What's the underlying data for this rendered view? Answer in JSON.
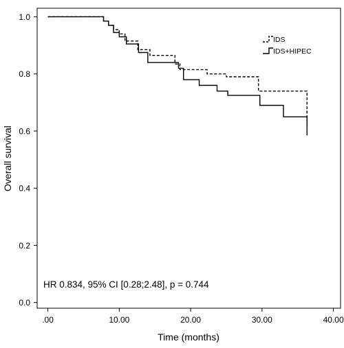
{
  "chart_data": {
    "type": "line",
    "step": true,
    "xlabel": "Time (months)",
    "ylabel": "Overall survival",
    "xlim": [
      -1.5,
      41
    ],
    "ylim": [
      -0.02,
      1.03
    ],
    "xticks": [
      0,
      10,
      20,
      30,
      40
    ],
    "xtick_labels": [
      ".00",
      "10.00",
      "20.00",
      "30.00",
      "40.00"
    ],
    "yticks": [
      0.0,
      0.2,
      0.4,
      0.6,
      0.8,
      1.0
    ],
    "ytick_labels": [
      "0.0",
      "0.2",
      "0.4",
      "0.6",
      "0.8",
      "1.0"
    ],
    "grid": false,
    "legend_position": "top-right",
    "annotation": "HR 0.834, 95% CI [0.28;2.48], p = 0.744",
    "series": [
      {
        "name": "IDS",
        "style": "dashed",
        "x": [
          0,
          7.8,
          8.5,
          9.2,
          10.0,
          10.8,
          12.6,
          14.3,
          17.8,
          18.5,
          22.3,
          25.0,
          29.5,
          36.3,
          36.3
        ],
        "y": [
          1.0,
          0.985,
          0.97,
          0.955,
          0.94,
          0.915,
          0.885,
          0.865,
          0.835,
          0.815,
          0.8,
          0.79,
          0.74,
          0.72,
          0.63
        ]
      },
      {
        "name": "IDS+HIPEC",
        "style": "solid",
        "x": [
          0,
          7.8,
          8.5,
          9.2,
          10.0,
          11.0,
          12.7,
          14.0,
          18.3,
          19.0,
          21.2,
          23.7,
          25.2,
          29.7,
          33.0,
          36.3,
          36.3
        ],
        "y": [
          1.0,
          0.985,
          0.97,
          0.945,
          0.93,
          0.905,
          0.875,
          0.84,
          0.82,
          0.78,
          0.76,
          0.74,
          0.725,
          0.69,
          0.65,
          0.645,
          0.585
        ]
      }
    ]
  }
}
